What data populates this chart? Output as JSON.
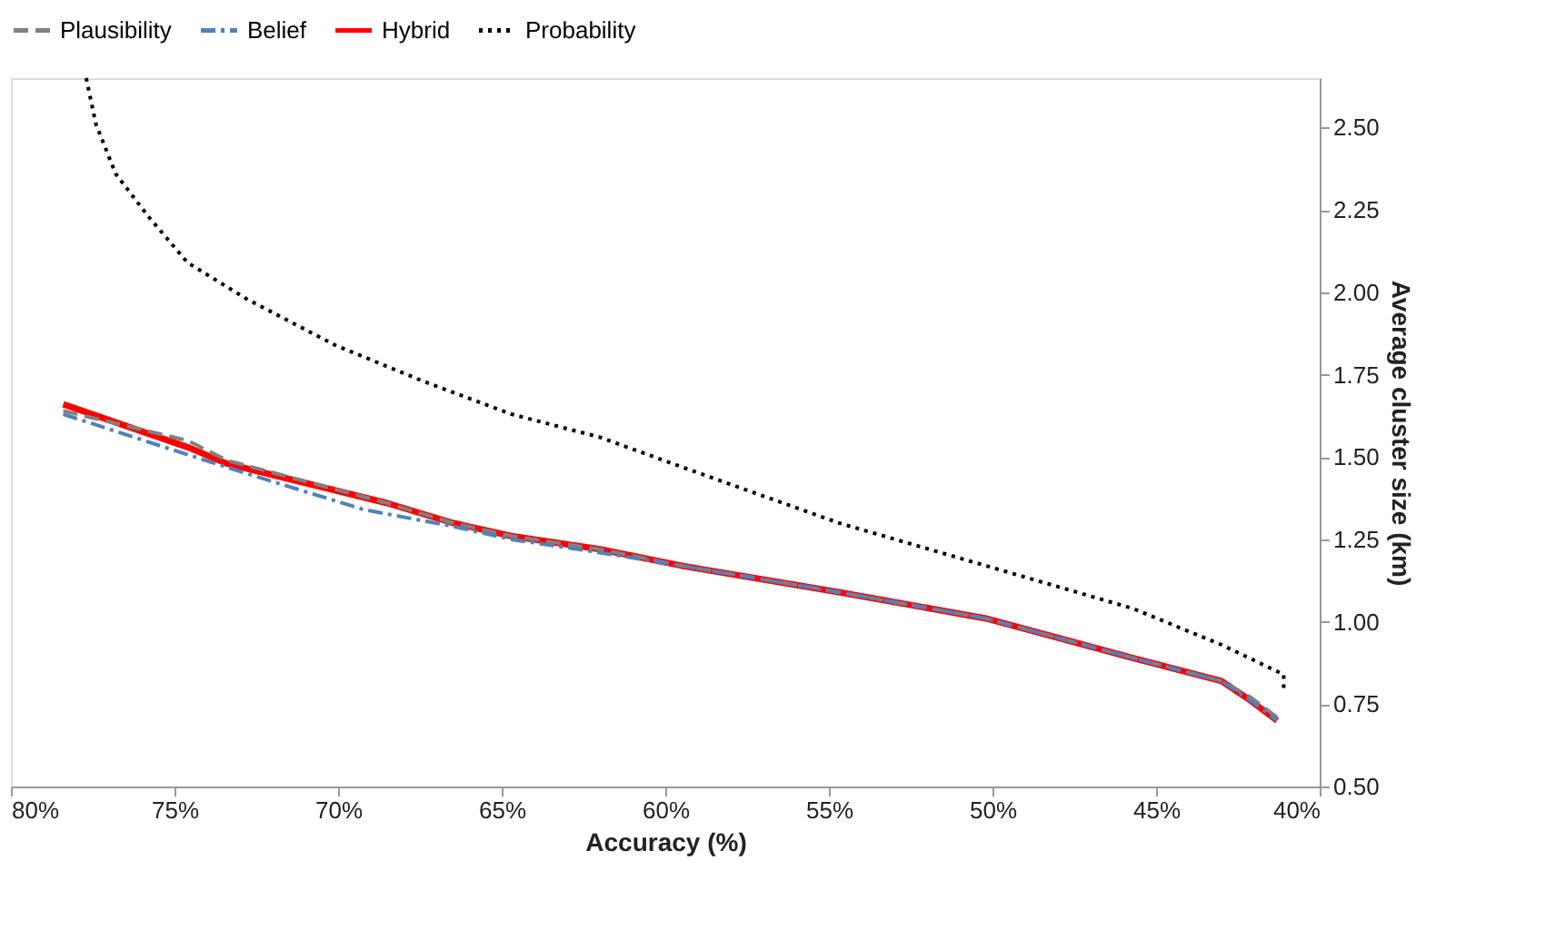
{
  "chart_data": {
    "type": "line",
    "xlabel": "Accuracy (%)",
    "ylabel": "Average cluster size (km)",
    "xlim": [
      80,
      40
    ],
    "xticks": [
      {
        "value": 80,
        "label": "80%"
      },
      {
        "value": 75,
        "label": "75%"
      },
      {
        "value": 70,
        "label": "70%"
      },
      {
        "value": 65,
        "label": "65%"
      },
      {
        "value": 60,
        "label": "60%"
      },
      {
        "value": 55,
        "label": "55%"
      },
      {
        "value": 50,
        "label": "50%"
      },
      {
        "value": 45,
        "label": "45%"
      },
      {
        "value": 40,
        "label": "40%"
      }
    ],
    "ylim": [
      0.5,
      2.65
    ],
    "yticks": [
      {
        "value": 0.5,
        "label": "0.50"
      },
      {
        "value": 0.75,
        "label": "0.75"
      },
      {
        "value": 1,
        "label": "1.00"
      },
      {
        "value": 1.25,
        "label": "1.25"
      },
      {
        "value": 1.5,
        "label": "1.50"
      },
      {
        "value": 1.75,
        "label": "1.75"
      },
      {
        "value": 2,
        "label": "2.00"
      },
      {
        "value": 2.25,
        "label": "2.25"
      },
      {
        "value": 2.5,
        "label": "2.50"
      }
    ],
    "grid": false,
    "legend": "top",
    "marker": "none",
    "series": [
      {
        "name": "Plausibility",
        "color": "#808080",
        "line_style": "dashed",
        "x": [
          78.4,
          74.6,
          73.4,
          68.5,
          66.5,
          64.7,
          62.0,
          59.5,
          54.7,
          50.2,
          45.7,
          43.0,
          42.1,
          41.3
        ],
        "values": [
          1.64,
          1.55,
          1.49,
          1.36,
          1.3,
          1.26,
          1.22,
          1.17,
          1.09,
          1.01,
          0.89,
          0.82,
          0.77,
          0.71
        ]
      },
      {
        "name": "Belief",
        "color": "#4f81bd",
        "line_style": "dashdot",
        "x": [
          78.4,
          75.0,
          72.8,
          69.2,
          66.5,
          64.7,
          62.0,
          59.5,
          54.7,
          50.2,
          45.7,
          43.0,
          42.1,
          41.3
        ],
        "values": [
          1.63,
          1.52,
          1.45,
          1.34,
          1.29,
          1.25,
          1.21,
          1.17,
          1.09,
          1.01,
          0.89,
          0.82,
          0.76,
          0.7
        ]
      },
      {
        "name": "Hybrid",
        "color": "#ff0000",
        "line_style": "solid",
        "x": [
          78.4,
          74.6,
          73.4,
          68.5,
          66.5,
          64.7,
          62.0,
          59.5,
          54.7,
          50.2,
          45.7,
          43.0,
          42.1,
          41.3
        ],
        "values": [
          1.66,
          1.53,
          1.48,
          1.36,
          1.3,
          1.26,
          1.22,
          1.17,
          1.09,
          1.01,
          0.89,
          0.82,
          0.76,
          0.7
        ]
      },
      {
        "name": "Probability",
        "color": "#000000",
        "line_style": "dotted",
        "x": [
          77.7,
          77.4,
          76.8,
          75.8,
          74.6,
          72.8,
          70.1,
          67.4,
          64.7,
          62.0,
          59.5,
          54.7,
          50.2,
          45.7,
          43.0,
          41.1,
          41.1
        ],
        "values": [
          2.65,
          2.51,
          2.36,
          2.23,
          2.09,
          1.98,
          1.84,
          1.73,
          1.63,
          1.56,
          1.47,
          1.3,
          1.17,
          1.04,
          0.93,
          0.84,
          0.79
        ]
      }
    ]
  }
}
